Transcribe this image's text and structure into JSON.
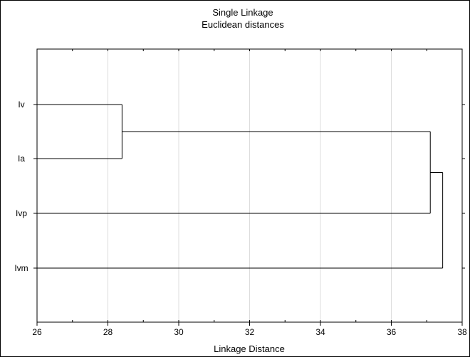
{
  "chart_data": {
    "type": "dendrogram",
    "title": "Single Linkage",
    "subtitle": "Euclidean distances",
    "xlabel": "Linkage Distance",
    "xlim": [
      26,
      38
    ],
    "xticks": [
      "26",
      "28",
      "30",
      "32",
      "34",
      "36",
      "38"
    ],
    "grid": true,
    "leaves": [
      "Iv",
      "Ia",
      "Ivp",
      "Ivm"
    ],
    "merges": [
      {
        "members": [
          "Iv",
          "Ia"
        ],
        "distance": 28.4
      },
      {
        "members": [
          "Iv+Ia",
          "Ivp"
        ],
        "distance": 37.1
      },
      {
        "members": [
          "Iv+Ia+Ivp",
          "Ivm"
        ],
        "distance": 37.45
      }
    ]
  }
}
